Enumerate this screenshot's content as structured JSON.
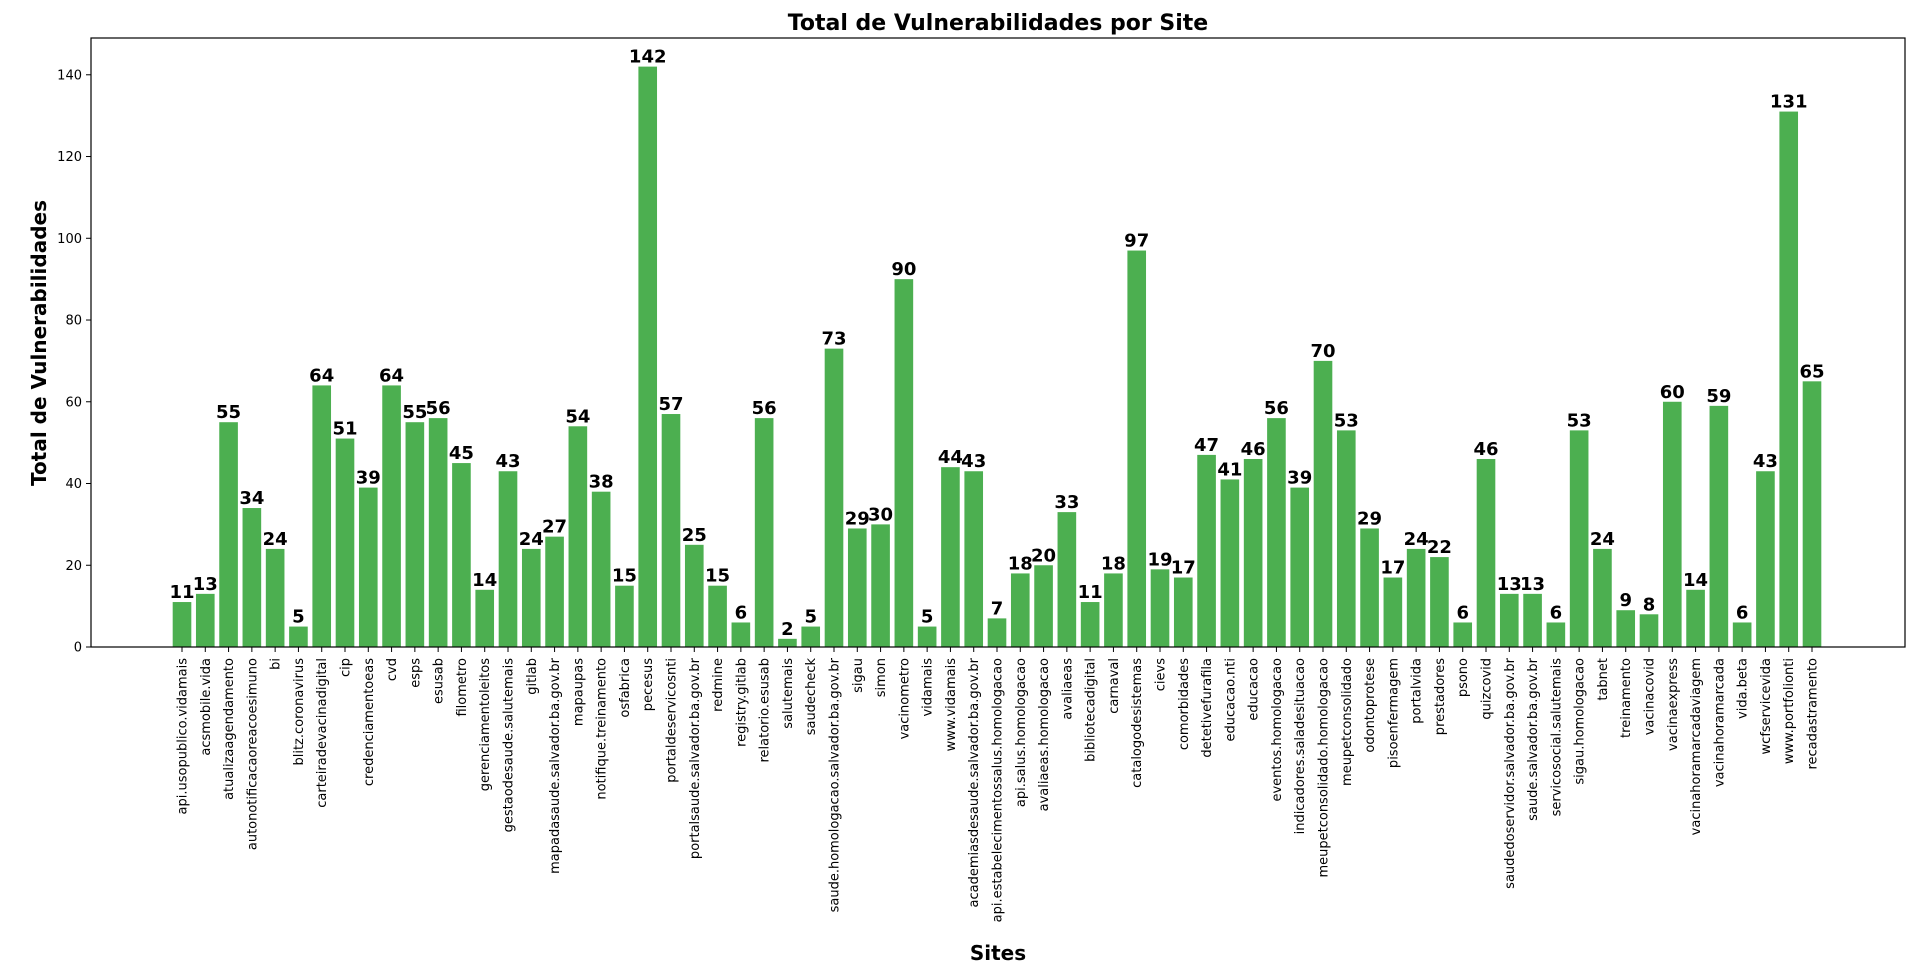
{
  "chart_data": {
    "type": "bar",
    "title": "Total de Vulnerabilidades por Site",
    "xlabel": "Sites",
    "ylabel": "Total de Vulnerabilidades",
    "ylim": [
      0,
      149
    ],
    "yticks": [
      0,
      20,
      40,
      60,
      80,
      100,
      120,
      140
    ],
    "bar_color": "#4caf50",
    "grid": false,
    "categories": [
      "api.usopublico.vidamais",
      "acsmobile.vida",
      "atualizaagendamento",
      "autonotificacaoreacoesimuno",
      "bi",
      "blitz.coronavirus",
      "carteiradevacinadigital",
      "cip",
      "credenciamentoeas",
      "cvd",
      "esps",
      "esusab",
      "filometro",
      "gerenciamentoleitos",
      "gestaodesaude.salutemais",
      "gitlab",
      "mapadasaude.salvador.ba.gov.br",
      "mapaupas",
      "notifique.treinamento",
      "osfabrica",
      "pecesus",
      "portaldeservicosnti",
      "portalsaude.salvador.ba.gov.br",
      "redmine",
      "registry.gitlab",
      "relatorio.esusab",
      "salutemais",
      "saudecheck",
      "saude.homologacao.salvador.ba.gov.br",
      "sigau",
      "simon",
      "vacinometro",
      "vidamais",
      "www.vidamais",
      "academiasdesaude.salvador.ba.gov.br",
      "api.estabelecimentossalus.homologacao",
      "api.salus.homologacao",
      "avaliaeas.homologacao",
      "avaliaeas",
      "bibliotecadigital",
      "carnaval",
      "catalogodesistemas",
      "cievs",
      "comorbidades",
      "detetivefurafila",
      "educacao.nti",
      "educacao",
      "eventos.homologacao",
      "indicadores.saladesituacao",
      "meupetconsolidado.homologacao",
      "meupetconsolidado",
      "odontoprotese",
      "pisoenfermagem",
      "portalvida",
      "prestadores",
      "psono",
      "quizcovid",
      "saudedoservidor.salvador.ba.gov.br",
      "saude.salvador.ba.gov.br",
      "servicosocial.salutemais",
      "sigau.homologacao",
      "tabnet",
      "treinamento",
      "vacinacovid",
      "vacinaexpress",
      "vacinahoramarcadaviagem",
      "vacinahoramarcada",
      "vida.beta",
      "wcfservicevida",
      "www.portfolionti",
      "recadastramento"
    ],
    "values": [
      11,
      13,
      55,
      34,
      24,
      5,
      64,
      51,
      39,
      64,
      55,
      56,
      45,
      14,
      43,
      24,
      27,
      54,
      38,
      15,
      142,
      57,
      25,
      15,
      6,
      56,
      2,
      5,
      73,
      29,
      30,
      90,
      5,
      44,
      43,
      7,
      18,
      20,
      33,
      11,
      18,
      97,
      19,
      17,
      47,
      41,
      46,
      56,
      39,
      70,
      53,
      29,
      17,
      24,
      22,
      6,
      46,
      13,
      13,
      6,
      53,
      24,
      9,
      8,
      60,
      14,
      59,
      6,
      43,
      131,
      65
    ]
  }
}
